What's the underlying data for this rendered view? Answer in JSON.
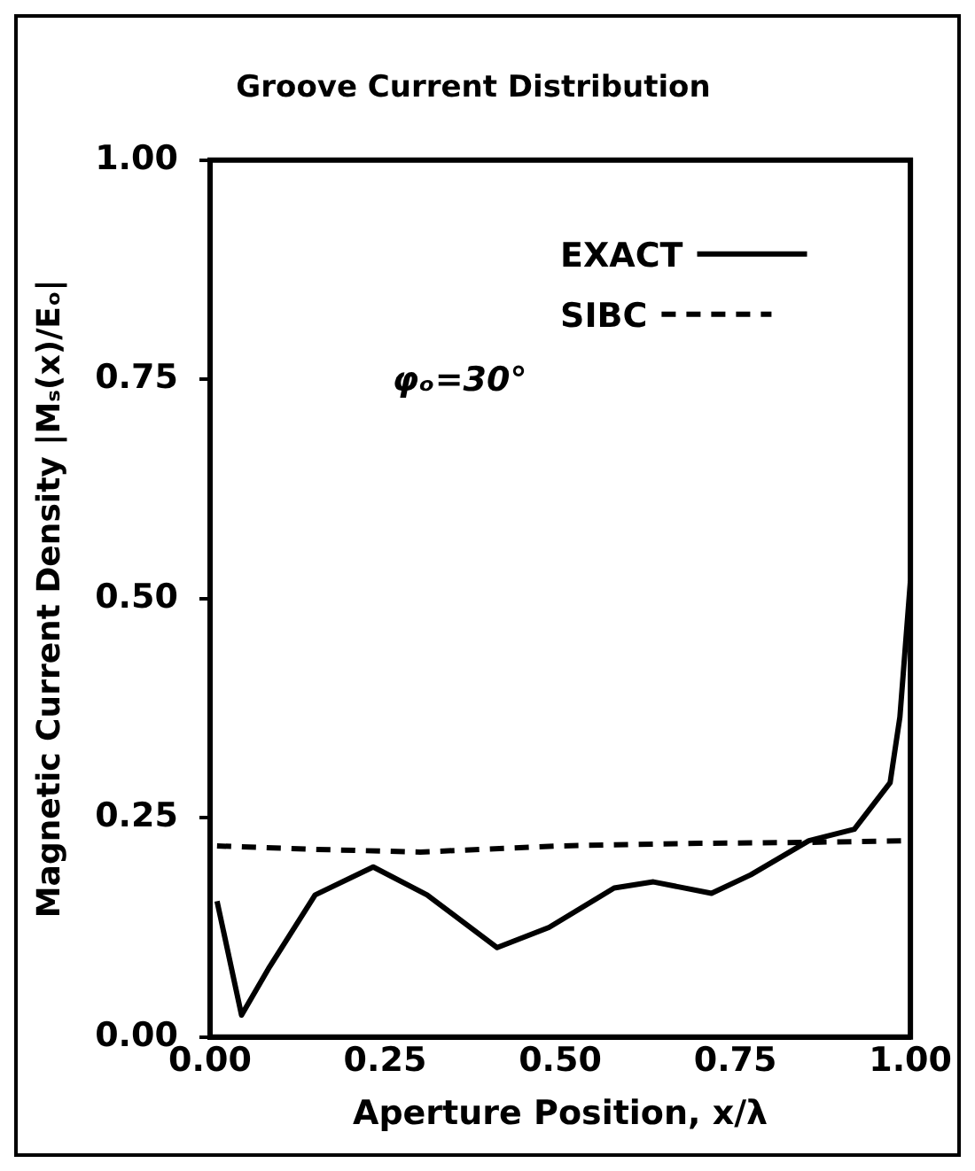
{
  "chart_data": {
    "type": "line",
    "title": "Groove Current Distribution",
    "xlabel": "Aperture Position, x/λ",
    "ylabel": "Magnetic Current Density |Mₛ(x)/Eₒ|",
    "xlim": [
      0,
      1
    ],
    "xticks": [
      {
        "value": 0,
        "label": "0.00"
      },
      0.25,
      {
        "value": 0.5,
        "label": "0.50"
      },
      0.75,
      {
        "value": 1,
        "label": "1.00"
      }
    ],
    "ylim": [
      0,
      1
    ],
    "yticks": [
      {
        "value": 0,
        "label": "0.00"
      },
      0.25,
      {
        "value": 0.5,
        "label": "0.50"
      },
      0.75,
      {
        "value": 1,
        "label": "1.00"
      }
    ],
    "legend": "top right",
    "annotations": [
      "φₒ=30°"
    ],
    "series": [
      {
        "name": "EXACT",
        "color": "#000000",
        "line_style": "solid",
        "x": [
          0.01,
          0.045,
          0.085,
          0.15,
          0.233,
          0.31,
          0.41,
          0.484,
          0.577,
          0.633,
          0.716,
          0.772,
          0.855,
          0.92,
          0.971,
          0.985,
          1.0
        ],
        "values": [
          0.155,
          0.025,
          0.08,
          0.162,
          0.194,
          0.162,
          0.102,
          0.125,
          0.17,
          0.177,
          0.164,
          0.185,
          0.224,
          0.237,
          0.29,
          0.365,
          0.52
        ]
      },
      {
        "name": "SIBC",
        "color": "#000000",
        "line_style": "dashed",
        "x": [
          0.01,
          0.15,
          0.3,
          0.5,
          0.7,
          0.85,
          1.0
        ],
        "values": [
          0.218,
          0.214,
          0.211,
          0.218,
          0.221,
          0.222,
          0.224
        ]
      }
    ]
  }
}
